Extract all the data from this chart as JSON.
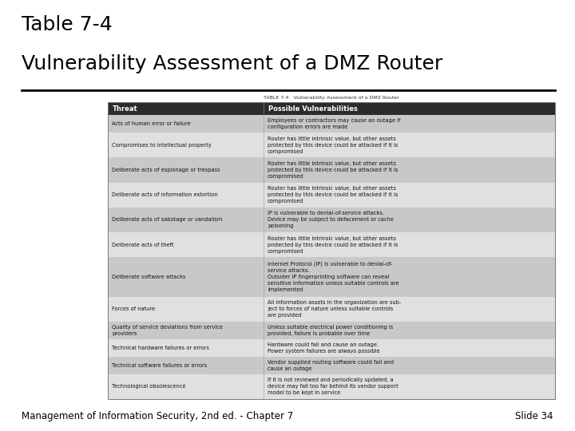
{
  "title_line1": "Table 7-4",
  "title_line2": "Vulnerability Assessment of a DMZ Router",
  "table_title": "TABLE 7-4   Vulnerability Assessment of a DMZ Router",
  "col1_header": "Threat",
  "col2_header": "Possible Vulnerabilities",
  "rows": [
    {
      "threat": "Acts of human error or failure",
      "vuln": "Employees or contractors may cause an outage if\nconfiguration errors are made"
    },
    {
      "threat": "Compromises to intellectual property",
      "vuln": "Router has little intrinsic value, but other assets\nprotected by this device could be attacked if it is\ncompromised"
    },
    {
      "threat": "Deliberate acts of espionage or trespass",
      "vuln": "Router has little intrinsic value, but other assets\nprotected by this device could be attacked if it is\ncompromised"
    },
    {
      "threat": "Deliberate acts of information extortion",
      "vuln": "Router has little intrinsic value, but other assets\nprotected by this device could be attacked if it is\ncompromised"
    },
    {
      "threat": "Deliberate acts of sabotage or vandalism",
      "vuln": "IP is vulnerable to denial-of-service attacks.\nDevice may be subject to defacement or cache\npoisoning"
    },
    {
      "threat": "Deliberate acts of theft",
      "vuln": "Router has little intrinsic value, but other assets\nprotected by this device could be attacked if it is\ncompromised"
    },
    {
      "threat": "Deliberate software attacks",
      "vuln": "Internet Protocol (IP) is vulnerable to denial-of-\nservice attacks.\nOutsider IP fingerprinting software can reveal\nsensitive information unless suitable controls are\nimplemented"
    },
    {
      "threat": "Forces of nature",
      "vuln": "All information assets in the organization are sub-\nject to forces of nature unless suitable controls\nare provided"
    },
    {
      "threat": "Quality of service deviations from service\nproviders",
      "vuln": "Unless suitable electrical power conditioning is\nprovided, failure is probable over time"
    },
    {
      "threat": "Technical hardware failures or errors",
      "vuln": "Hardware could fail and cause an outage.\nPower system failures are always possible"
    },
    {
      "threat": "Technical software failures or errors",
      "vuln": "Vendor supplied routing software could fail and\ncause an outage"
    },
    {
      "threat": "Technological obsolescence",
      "vuln": "If it is not reviewed and periodically updated, a\ndevice may fall too far behind its vendor support\nmodel to be kept in service"
    }
  ],
  "header_bg": "#2b2b2b",
  "header_fg": "#ffffff",
  "row_bg_odd": "#c8c8c8",
  "row_bg_even": "#e0e0e0",
  "footer_text": "Management of Information Security, 2nd ed. - Chapter 7",
  "footer_right": "Slide 34",
  "bg_color": "#ffffff"
}
